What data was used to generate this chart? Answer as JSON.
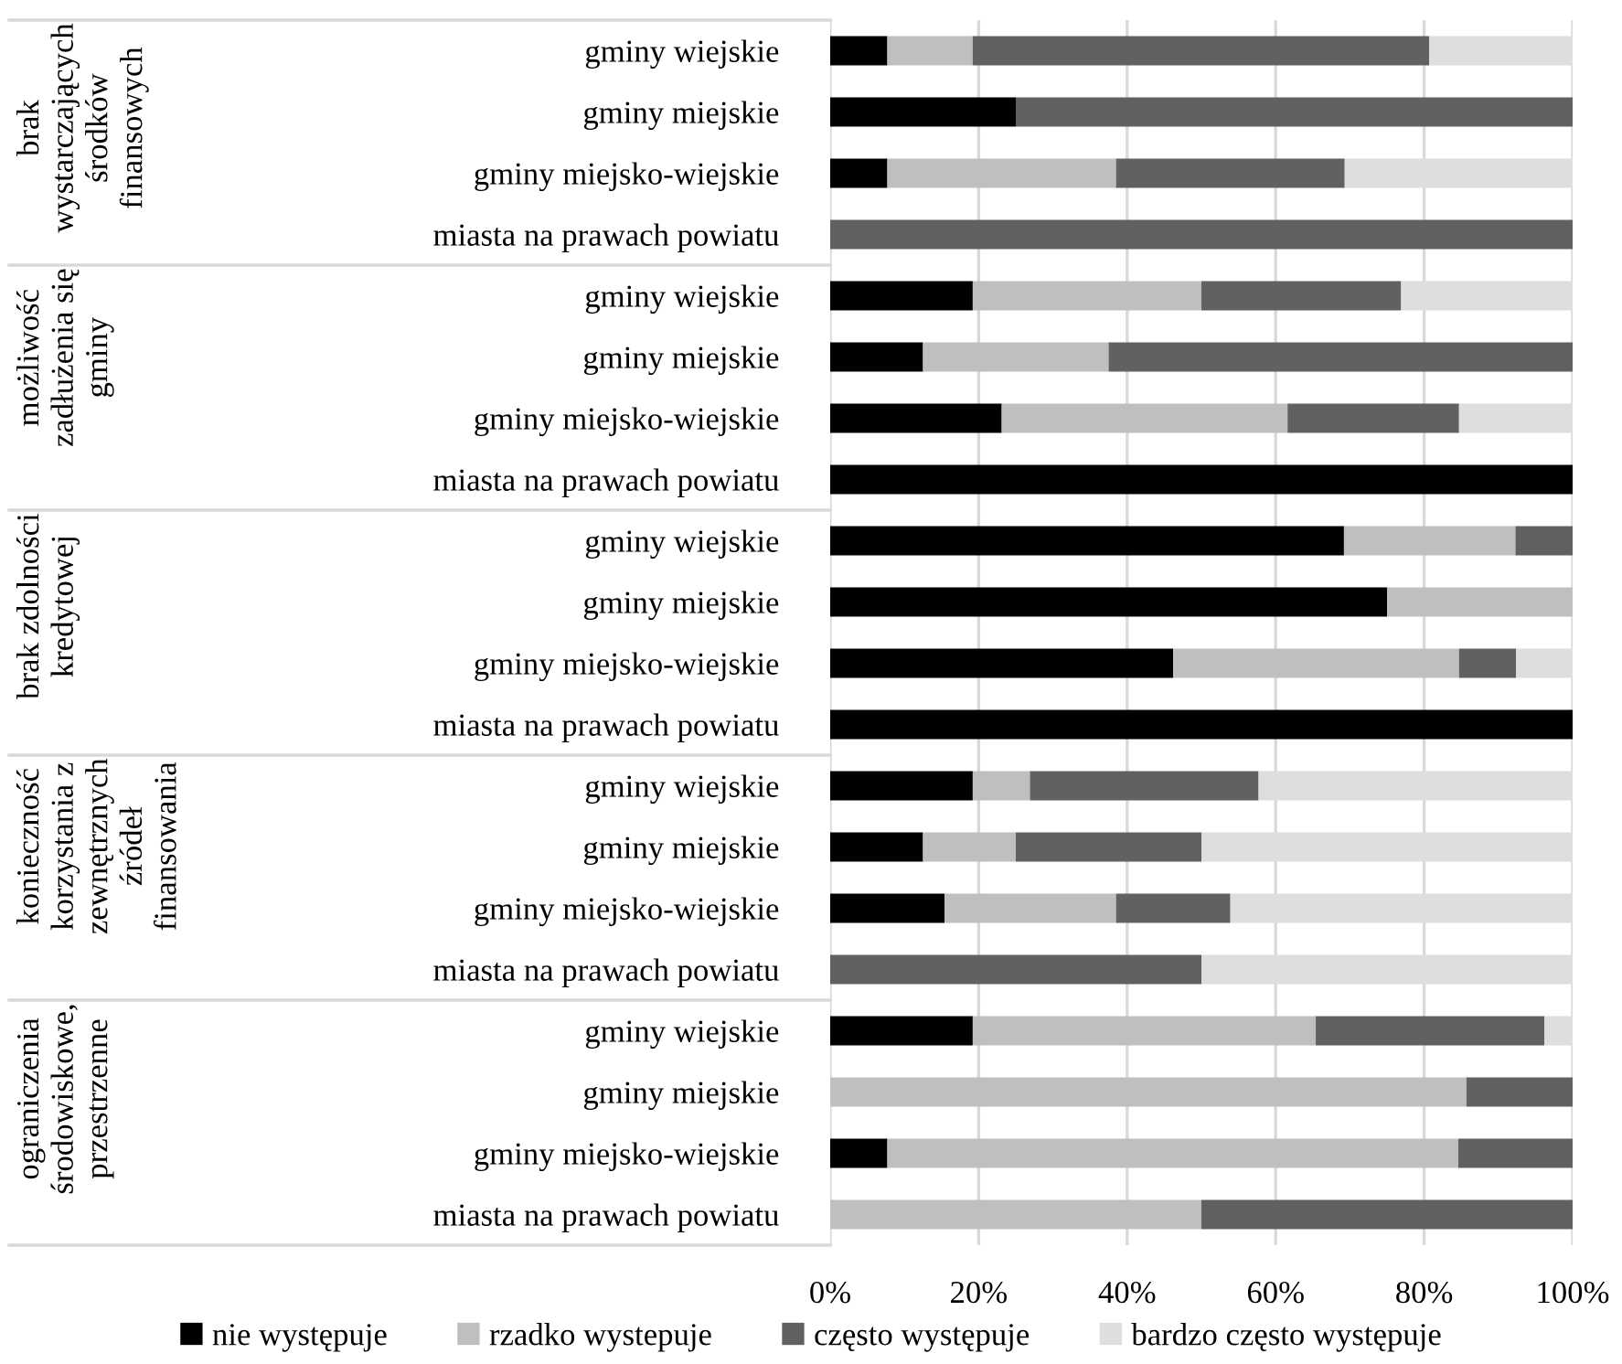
{
  "chart_data": {
    "type": "bar",
    "orientation": "horizontal",
    "stacked": true,
    "categories": [
      "gminy wiejskie",
      "gminy miejskie",
      "gminy miejsko-wiejskie",
      "miasta na prawach powiatu",
      "gminy wiejskie",
      "gminy miejskie",
      "gminy miejsko-wiejskie",
      "miasta na prawach powiatu",
      "gminy wiejskie",
      "gminy miejskie",
      "gminy miejsko-wiejskie",
      "miasta na prawach powiatu",
      "gminy wiejskie",
      "gminy miejskie",
      "gminy miejsko-wiejskie",
      "miasta na prawach powiatu",
      "gminy wiejskie",
      "gminy miejskie",
      "gminy miejsko-wiejskie",
      "miasta na prawach powiatu"
    ],
    "series": [
      {
        "name": "nie występuje",
        "color": "#000000",
        "values": [
          7.7,
          25,
          7.7,
          0,
          19.2,
          12.5,
          23.1,
          100,
          69.2,
          75,
          46.2,
          100,
          19.2,
          12.5,
          15.4,
          0,
          19.2,
          0,
          7.7,
          0
        ]
      },
      {
        "name": "rzadko wystepuje",
        "color": "#bfbfbf",
        "values": [
          11.5,
          0,
          30.8,
          0,
          30.8,
          25,
          38.5,
          0,
          23.1,
          25,
          38.5,
          0,
          7.7,
          12.5,
          23.1,
          0,
          46.2,
          85.7,
          76.9,
          50
        ]
      },
      {
        "name": "często występuje",
        "color": "#616161",
        "values": [
          61.5,
          75,
          30.8,
          100,
          26.9,
          62.5,
          23.1,
          0,
          7.7,
          0,
          7.7,
          0,
          30.8,
          25,
          15.4,
          50,
          30.8,
          14.3,
          15.4,
          50
        ]
      },
      {
        "name": "bardzo często występuje",
        "color": "#dedede",
        "values": [
          19.3,
          0,
          30.7,
          0,
          23.1,
          0,
          15.3,
          0,
          0,
          0,
          7.6,
          0,
          42.3,
          50,
          46.1,
          50,
          3.8,
          0,
          0,
          0
        ]
      }
    ],
    "annotations": [
      "brak\nwystarczających\nśrodków\nfinansowych",
      "możliwość\nzadłużenia się\ngminy",
      "brak zdolności\nkredytowej",
      "konieczność\nkorzystania z\nzewnętrznych\nźródeł\nfinansowania",
      "ograniczenia\nśrodowiskowe,\nprzestrzenne"
    ],
    "xlim": [
      0,
      100
    ],
    "xticks": [
      {
        "value": 0,
        "label": "0%"
      },
      {
        "value": 20,
        "label": "20%"
      },
      {
        "value": 40,
        "label": "40%"
      },
      {
        "value": 60,
        "label": "60%"
      },
      {
        "value": 80,
        "label": "80%"
      },
      {
        "value": 100,
        "label": "100%"
      }
    ],
    "grid": "x",
    "legend": "bottom"
  }
}
